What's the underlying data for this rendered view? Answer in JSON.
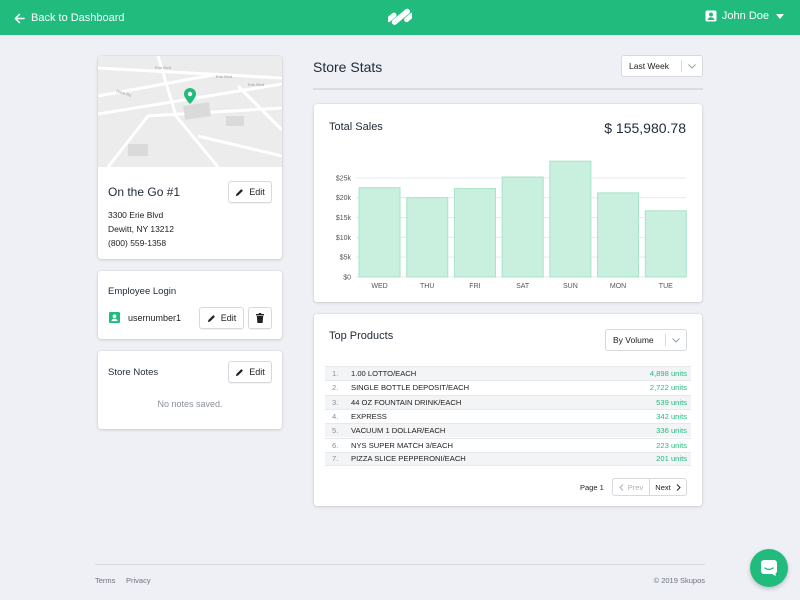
{
  "header": {
    "back_label": "Back to Dashboard",
    "user_name": "John Doe"
  },
  "store": {
    "name": "On the Go #1",
    "address_line1": "3300 Erie Blvd",
    "address_line2": "Dewitt, NY 13212",
    "phone": "(800) 559-1358",
    "edit_label": "Edit",
    "map_streets": [
      "Erie Blvd",
      "Drive Rd",
      "Erie Blvd",
      "Erie Blvd"
    ]
  },
  "employee_login": {
    "title": "Employee Login",
    "username": "usernumber1",
    "edit_label": "Edit"
  },
  "store_notes": {
    "title": "Store Notes",
    "edit_label": "Edit",
    "empty_text": "No notes saved."
  },
  "stats": {
    "title": "Store Stats",
    "period": "Last Week"
  },
  "sales": {
    "label": "Total Sales",
    "amount": "$ 155,980.78"
  },
  "chart_data": {
    "type": "bar",
    "categories": [
      "WED",
      "THU",
      "FRI",
      "SAT",
      "SUN",
      "MON",
      "TUE"
    ],
    "values": [
      22500,
      20000,
      22300,
      25200,
      29200,
      21200,
      16700
    ],
    "ylim": [
      0,
      30000
    ],
    "yticks": [
      0,
      5000,
      10000,
      15000,
      20000,
      25000
    ],
    "ytick_labels": [
      "$0",
      "$5k",
      "$10k",
      "$15k",
      "$20k",
      "$25k"
    ],
    "title": "",
    "xlabel": "",
    "ylabel": "",
    "grid": true,
    "colors": {
      "bar_fill": "#c9efdf",
      "bar_stroke": "#a7e3c9",
      "grid": "#e8eaee"
    }
  },
  "top_products": {
    "title": "Top Products",
    "sort": "By Volume",
    "rows": [
      {
        "num": "1.",
        "name": "1.00 LOTTO/EACH",
        "units": "4,898 units"
      },
      {
        "num": "2.",
        "name": "SINGLE BOTTLE DEPOSIT/EACH",
        "units": "2,722 units"
      },
      {
        "num": "3.",
        "name": "44 OZ FOUNTAIN DRINK/EACH",
        "units": "539 units"
      },
      {
        "num": "4.",
        "name": "EXPRESS",
        "units": "342 units"
      },
      {
        "num": "5.",
        "name": "VACUUM 1 DOLLAR/EACH",
        "units": "336 units"
      },
      {
        "num": "6.",
        "name": "NYS SUPER MATCH 3/EACH",
        "units": "223 units"
      },
      {
        "num": "7.",
        "name": "PIZZA SLICE PEPPERONI/EACH",
        "units": "201 units"
      }
    ],
    "page_label": "Page 1",
    "prev_label": "Prev",
    "next_label": "Next"
  },
  "footer": {
    "terms": "Terms",
    "privacy": "Privacy",
    "copyright": "© 2019 Skupos"
  },
  "colors": {
    "brand": "#21bb7e",
    "background": "#eef0f5"
  }
}
